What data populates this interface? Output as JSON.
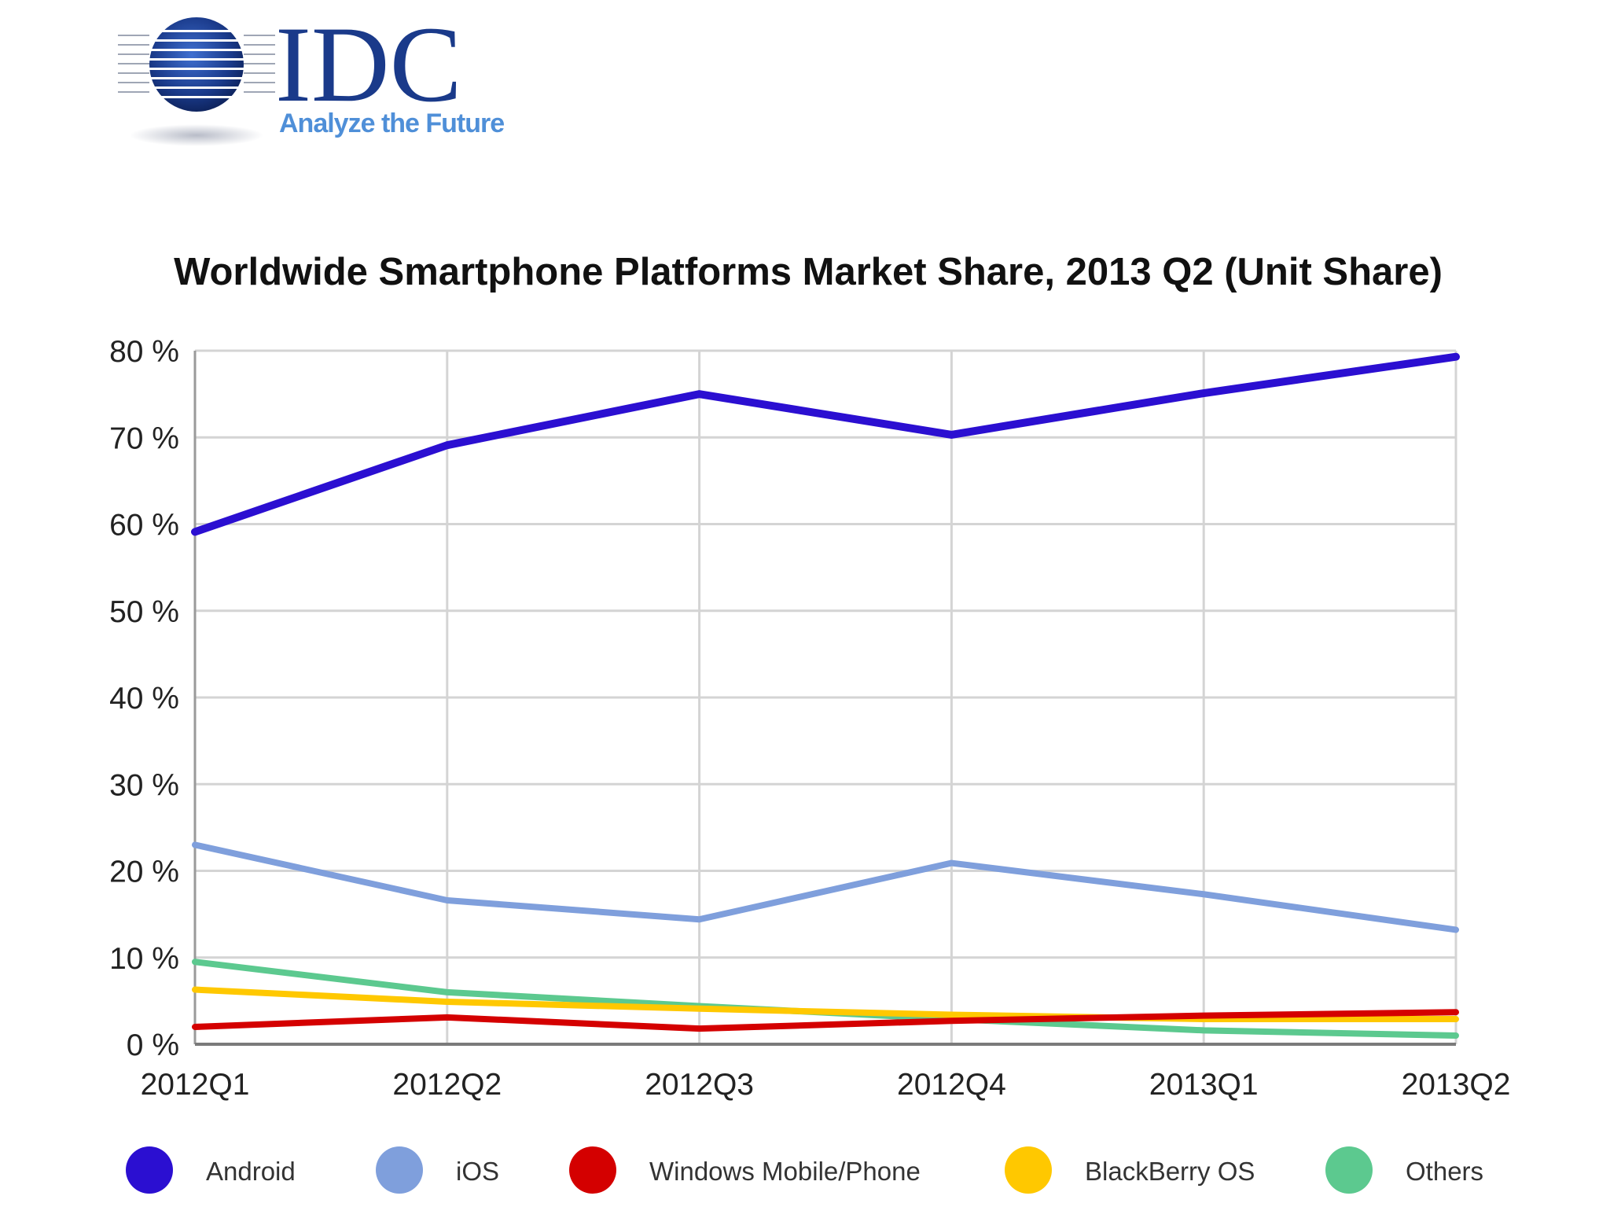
{
  "logo": {
    "name": "IDC",
    "tagline": "Analyze the Future",
    "colors": {
      "blue": "#1a3a8a",
      "light_blue": "#4f8fd8"
    }
  },
  "chart_data": {
    "type": "line",
    "title": "Worldwide Smartphone Platforms Market Share, 2013 Q2 (Unit Share)",
    "xlabel": "",
    "ylabel": "",
    "categories": [
      "2012Q1",
      "2012Q2",
      "2012Q3",
      "2012Q4",
      "2013Q1",
      "2013Q2"
    ],
    "ylim": [
      0,
      80
    ],
    "yticks": [
      0,
      10,
      20,
      30,
      40,
      50,
      60,
      70,
      80
    ],
    "ytick_labels": [
      "0 %",
      "10 %",
      "20 %",
      "30 %",
      "40 %",
      "50 %",
      "60 %",
      "70 %",
      "80 %"
    ],
    "grid": true,
    "legend_position": "bottom",
    "series": [
      {
        "name": "Android",
        "color": "#2b0fd1",
        "values": [
          59.1,
          69.1,
          75.0,
          70.3,
          75.1,
          79.3
        ]
      },
      {
        "name": "iOS",
        "color": "#7f9fdc",
        "values": [
          23.0,
          16.6,
          14.4,
          20.9,
          17.3,
          13.2
        ]
      },
      {
        "name": "Windows Mobile/Phone",
        "color": "#d40000",
        "values": [
          2.0,
          3.1,
          1.8,
          2.7,
          3.3,
          3.7
        ]
      },
      {
        "name": "BlackBerry OS",
        "color": "#ffc800",
        "values": [
          6.3,
          4.9,
          4.1,
          3.4,
          2.9,
          2.9
        ]
      },
      {
        "name": "Others",
        "color": "#5cc98f",
        "values": [
          9.5,
          6.0,
          4.4,
          2.9,
          1.6,
          1.0
        ]
      }
    ]
  }
}
